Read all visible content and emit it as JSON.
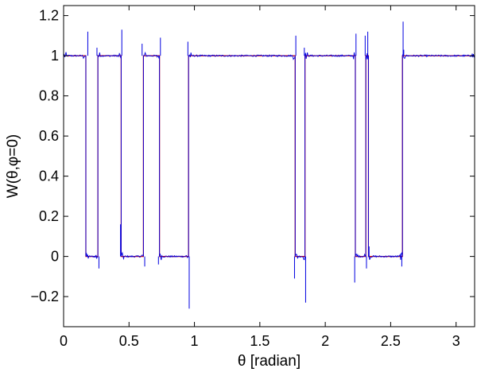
{
  "chart_data": {
    "type": "line",
    "xlabel": "θ [radian]",
    "ylabel": "W(θ,φ=0)",
    "xlim": [
      0,
      3.14159
    ],
    "ylim": [
      -0.35,
      1.25
    ],
    "xticks": [
      0,
      0.5,
      1,
      1.5,
      2,
      2.5,
      3
    ],
    "xtick_labels": [
      "0",
      "0.5",
      "1",
      "1.5",
      "2",
      "2.5",
      "3"
    ],
    "yticks": [
      -0.2,
      0,
      0.2,
      0.4,
      0.6,
      0.8,
      1,
      1.2
    ],
    "ytick_labels": [
      "−0.2",
      "0",
      "0.2",
      "0.4",
      "0.6",
      "0.8",
      "1",
      "1.2"
    ],
    "grid": false,
    "legend": "none",
    "series": [
      {
        "color": "#d40000",
        "x": [
          0,
          0.17,
          0.17,
          0.262,
          0.262,
          0.44,
          0.44,
          0.61,
          0.61,
          0.733,
          0.733,
          0.955,
          0.955,
          1.77,
          1.77,
          1.845,
          1.845,
          2.23,
          2.23,
          2.31,
          2.31,
          2.33,
          2.33,
          2.59,
          2.59,
          3.14159
        ],
        "y": [
          1,
          1,
          0,
          0,
          1,
          1,
          0,
          0,
          1,
          1,
          0,
          0,
          1,
          1,
          0,
          0,
          1,
          1,
          0,
          0,
          1,
          1,
          0,
          0,
          1,
          1
        ]
      },
      {
        "color": "#0000e0",
        "x": [
          0,
          0.17,
          0.17,
          0.262,
          0.262,
          0.44,
          0.44,
          0.61,
          0.61,
          0.733,
          0.733,
          0.955,
          0.955,
          1.77,
          1.77,
          1.845,
          1.845,
          2.23,
          2.23,
          2.31,
          2.31,
          2.33,
          2.33,
          2.59,
          2.59,
          3.14159
        ],
        "y": [
          1,
          1,
          0,
          0,
          1,
          1,
          0,
          0,
          1,
          1,
          0,
          0,
          1,
          1,
          0,
          0,
          1,
          1,
          0,
          0,
          1,
          1,
          0,
          0,
          1,
          1
        ],
        "spikes": [
          {
            "x": 0.185,
            "y": 1.12
          },
          {
            "x": 0.255,
            "y": 1.04
          },
          {
            "x": 0.27,
            "y": -0.06
          },
          {
            "x": 0.435,
            "y": 0.16
          },
          {
            "x": 0.445,
            "y": 1.13
          },
          {
            "x": 0.6,
            "y": 1.06
          },
          {
            "x": 0.62,
            "y": -0.05
          },
          {
            "x": 0.725,
            "y": -0.04
          },
          {
            "x": 0.74,
            "y": 1.09
          },
          {
            "x": 0.95,
            "y": 1.07
          },
          {
            "x": 0.96,
            "y": -0.26
          },
          {
            "x": 1.765,
            "y": -0.11
          },
          {
            "x": 1.775,
            "y": 1.1
          },
          {
            "x": 1.84,
            "y": 1.04
          },
          {
            "x": 1.85,
            "y": -0.23
          },
          {
            "x": 2.225,
            "y": -0.13
          },
          {
            "x": 2.235,
            "y": 1.11
          },
          {
            "x": 2.305,
            "y": 1.1
          },
          {
            "x": 2.315,
            "y": -0.06
          },
          {
            "x": 2.325,
            "y": 1.12
          },
          {
            "x": 2.335,
            "y": 0.05
          },
          {
            "x": 2.585,
            "y": -0.05
          },
          {
            "x": 2.595,
            "y": 1.17
          },
          {
            "x": 2.6,
            "y": 1.03
          }
        ],
        "noise_ranges": [
          [
            0.0,
            0.17
          ],
          [
            0.262,
            0.44
          ],
          [
            0.44,
            0.61
          ],
          [
            0.61,
            0.733
          ],
          [
            0.733,
            0.955
          ],
          [
            1.77,
            1.845
          ],
          [
            1.845,
            2.23
          ],
          [
            2.23,
            2.31
          ],
          [
            2.33,
            2.59
          ],
          [
            2.59,
            3.14159
          ]
        ]
      }
    ]
  }
}
